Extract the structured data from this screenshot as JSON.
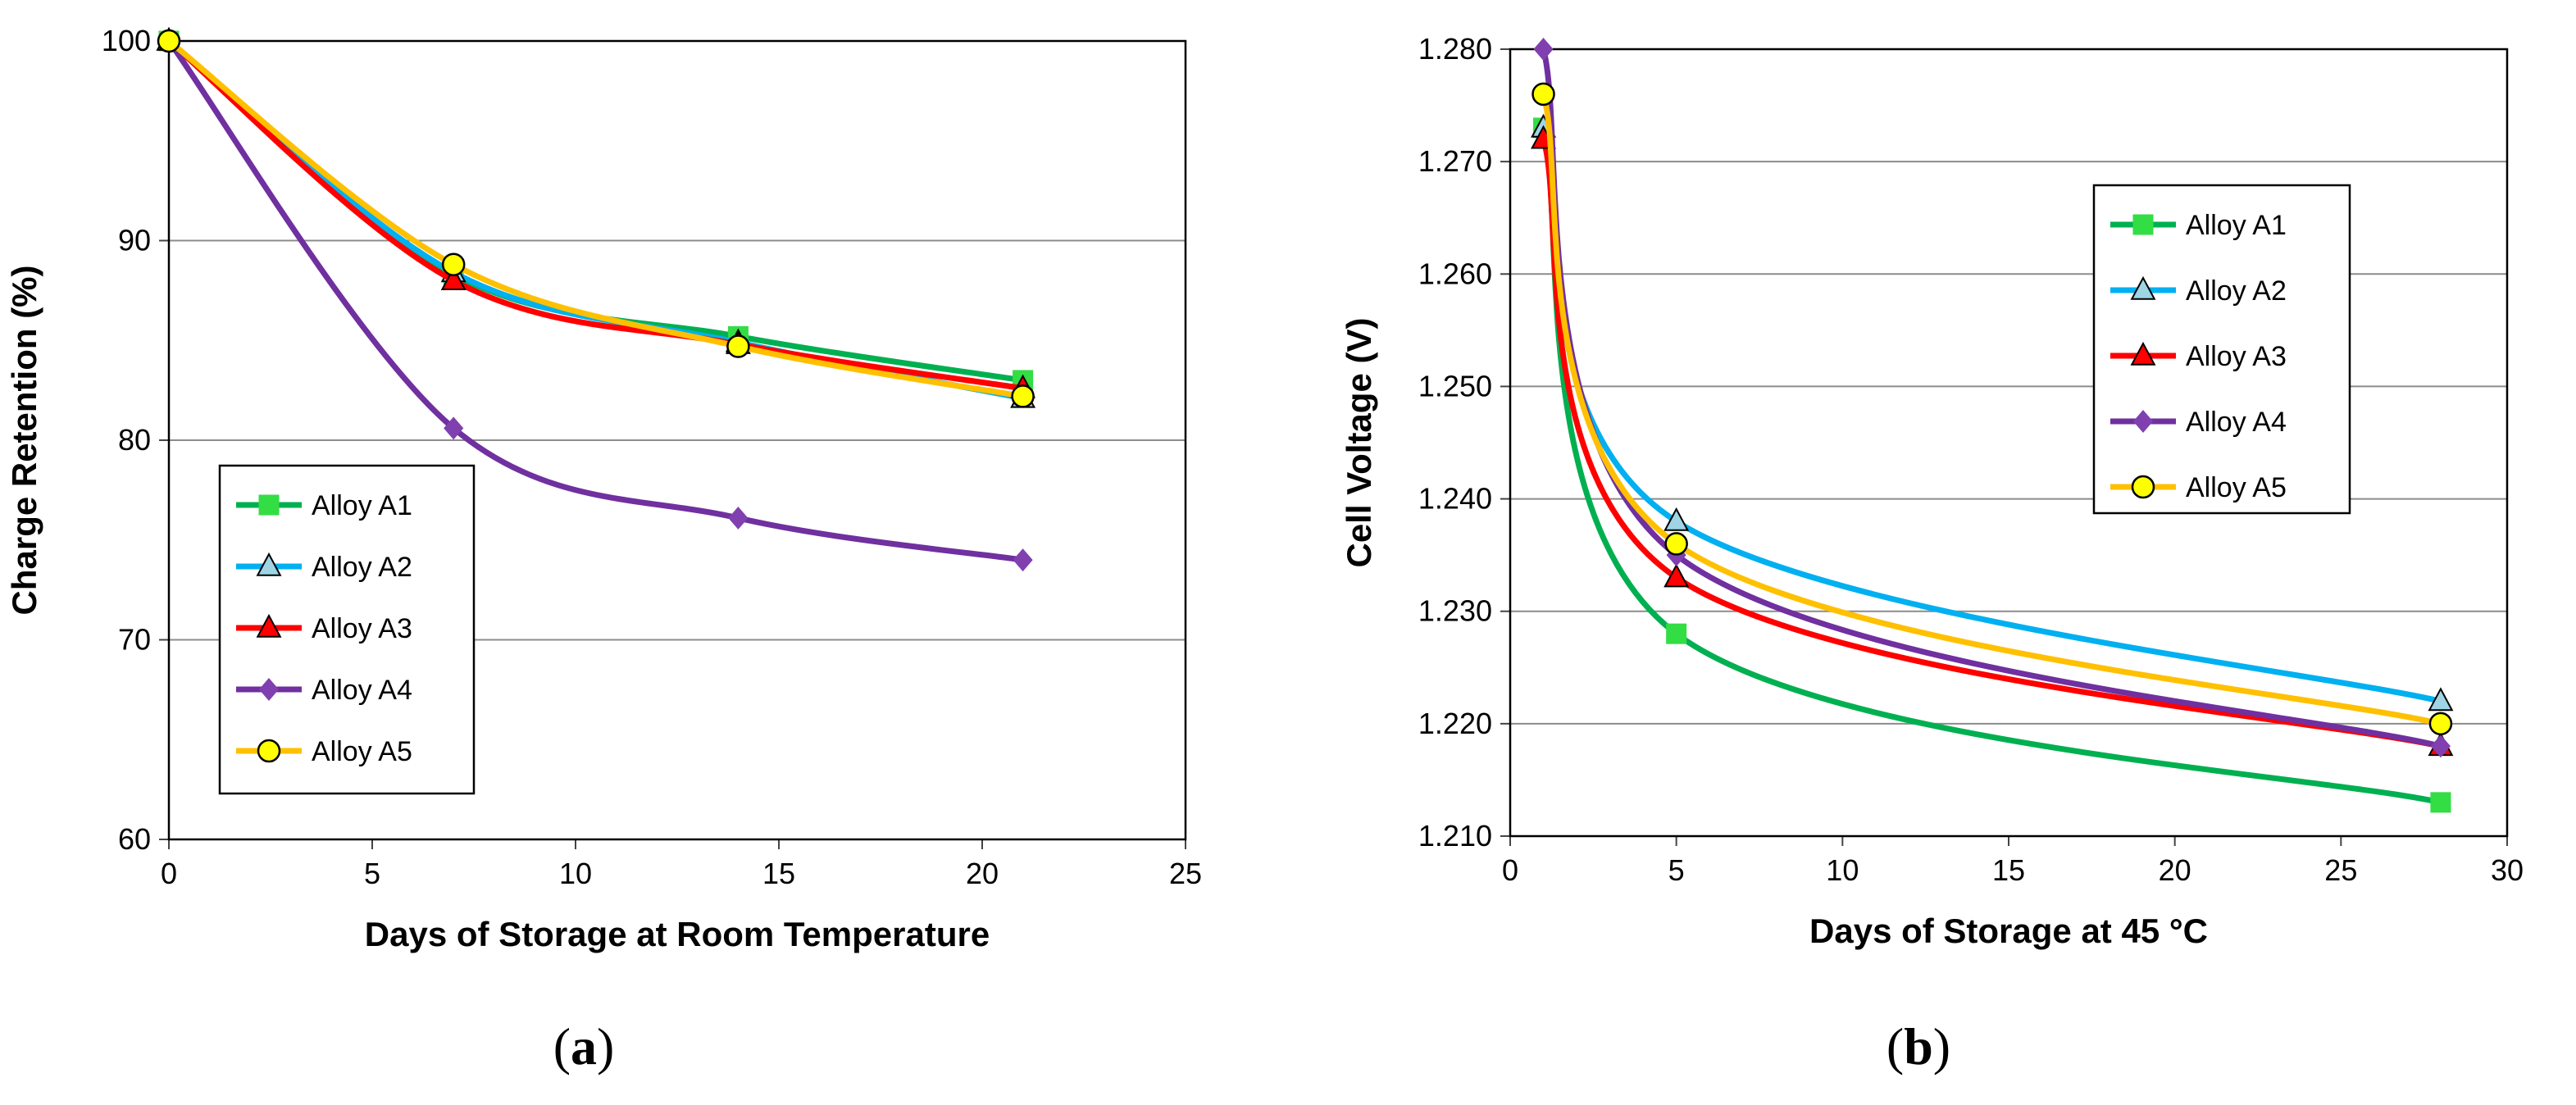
{
  "chart_data": [
    {
      "type": "line",
      "panel_label": {
        "open": "(",
        "letter": "a",
        "close": ")"
      },
      "xlabel": "Days of Storage at Room Temperature",
      "ylabel": "Charge Retention (%)",
      "xlim": [
        0,
        25
      ],
      "ylim": [
        60,
        100
      ],
      "xticks": [
        0,
        5,
        10,
        15,
        20,
        25
      ],
      "yticks": [
        60,
        70,
        80,
        90,
        100
      ],
      "grid": "horizontal",
      "legend_position": "lower-left",
      "series": [
        {
          "name": "Alloy A1",
          "color": "#00b050",
          "marker": "square",
          "marker_fill": "#33dd44",
          "x": [
            0,
            7,
            14,
            21
          ],
          "y": [
            100,
            88.3,
            85.2,
            83.0
          ]
        },
        {
          "name": "Alloy A2",
          "color": "#00b0f0",
          "marker": "triangle",
          "marker_fill": "#9fd4e4",
          "x": [
            0,
            7,
            14,
            21
          ],
          "y": [
            100,
            88.4,
            84.9,
            82.1
          ]
        },
        {
          "name": "Alloy A3",
          "color": "#ff0000",
          "marker": "triangle",
          "marker_fill": "#ff0000",
          "x": [
            0,
            7,
            14,
            21
          ],
          "y": [
            100,
            88.0,
            84.8,
            82.6
          ]
        },
        {
          "name": "Alloy A4",
          "color": "#7030a0",
          "marker": "diamond",
          "marker_fill": "#8040b0",
          "x": [
            0,
            7,
            14,
            21
          ],
          "y": [
            100,
            80.6,
            76.1,
            74.0
          ]
        },
        {
          "name": "Alloy A5",
          "color": "#ffc000",
          "marker": "circle",
          "marker_fill": "#ffff00",
          "x": [
            0,
            7,
            14,
            21
          ],
          "y": [
            100,
            88.8,
            84.7,
            82.2
          ]
        }
      ]
    },
    {
      "type": "line",
      "panel_label": {
        "open": "(",
        "letter": "b",
        "close": ")"
      },
      "xlabel": "Days of Storage at 45 °C",
      "ylabel": "Cell Voltage (V)",
      "xlim": [
        0,
        30
      ],
      "ylim": [
        1.21,
        1.28
      ],
      "xticks": [
        0,
        5,
        10,
        15,
        20,
        25,
        30
      ],
      "yticks": [
        1.21,
        1.22,
        1.23,
        1.24,
        1.25,
        1.26,
        1.27,
        1.28
      ],
      "grid": "horizontal",
      "legend_position": "upper-right",
      "series": [
        {
          "name": "Alloy A1",
          "color": "#00b050",
          "marker": "square",
          "marker_fill": "#33dd44",
          "x": [
            1,
            5,
            28
          ],
          "y": [
            1.273,
            1.228,
            1.213
          ]
        },
        {
          "name": "Alloy A2",
          "color": "#00b0f0",
          "marker": "triangle",
          "marker_fill": "#9fd4e4",
          "x": [
            1,
            5,
            28
          ],
          "y": [
            1.273,
            1.238,
            1.222
          ]
        },
        {
          "name": "Alloy A3",
          "color": "#ff0000",
          "marker": "triangle",
          "marker_fill": "#ff0000",
          "x": [
            1,
            5,
            28
          ],
          "y": [
            1.272,
            1.233,
            1.218
          ]
        },
        {
          "name": "Alloy A4",
          "color": "#7030a0",
          "marker": "diamond",
          "marker_fill": "#8040b0",
          "x": [
            1,
            5,
            28
          ],
          "y": [
            1.28,
            1.235,
            1.218
          ]
        },
        {
          "name": "Alloy A5",
          "color": "#ffc000",
          "marker": "circle",
          "marker_fill": "#ffff00",
          "x": [
            1,
            5,
            28
          ],
          "y": [
            1.276,
            1.236,
            1.22
          ]
        }
      ]
    }
  ]
}
